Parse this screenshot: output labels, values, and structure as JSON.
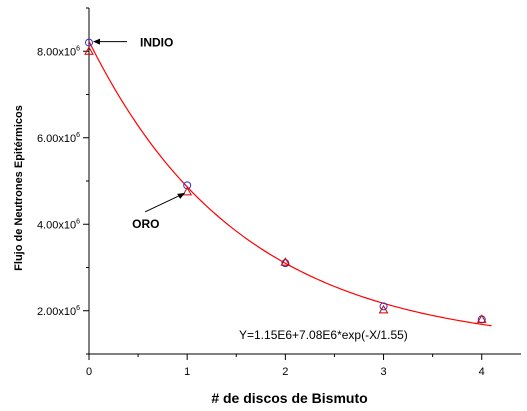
{
  "chart_data": {
    "type": "scatter",
    "xlabel": "# de discos de Bismuto",
    "ylabel": "Flujo de Neutrones Epitérmicos",
    "xlim": [
      0,
      4.4
    ],
    "ylim": [
      1000000,
      9000000
    ],
    "x_ticks": [
      0,
      1,
      2,
      3,
      4
    ],
    "x_tick_labels": [
      "0",
      "1",
      "2",
      "3",
      "4"
    ],
    "y_ticks": [
      2000000,
      4000000,
      6000000,
      8000000
    ],
    "y_tick_labels": [
      {
        "mantissa": "2.00x10",
        "exp": "6"
      },
      {
        "mantissa": "4.00x10",
        "exp": "6"
      },
      {
        "mantissa": "6.00x10",
        "exp": "6"
      },
      {
        "mantissa": "8.00x10",
        "exp": "6"
      }
    ],
    "series": [
      {
        "marker": "circle",
        "color": "#3333cc",
        "x": [
          0,
          1,
          2,
          3,
          4
        ],
        "y": [
          8200000,
          4900000,
          3100000,
          2100000,
          1800000
        ]
      },
      {
        "marker": "triangle",
        "color": "#cc0000",
        "x": [
          0,
          1,
          2,
          3,
          4
        ],
        "y": [
          8000000,
          4750000,
          3120000,
          2020000,
          1800000
        ]
      }
    ],
    "fit": {
      "color": "#ff0000",
      "a": 1150000,
      "b": 7080000,
      "t": 1.55,
      "x_range": [
        0,
        4.1
      ]
    },
    "equation_label": "Y=1.15E6+7.08E6*exp(-X/1.55)",
    "annotations": [
      {
        "text": "INDIO",
        "x": 0,
        "y": 8200000
      },
      {
        "text": "ORO",
        "x": 1,
        "y": 4750000
      }
    ],
    "grid": false,
    "legend": "none"
  }
}
